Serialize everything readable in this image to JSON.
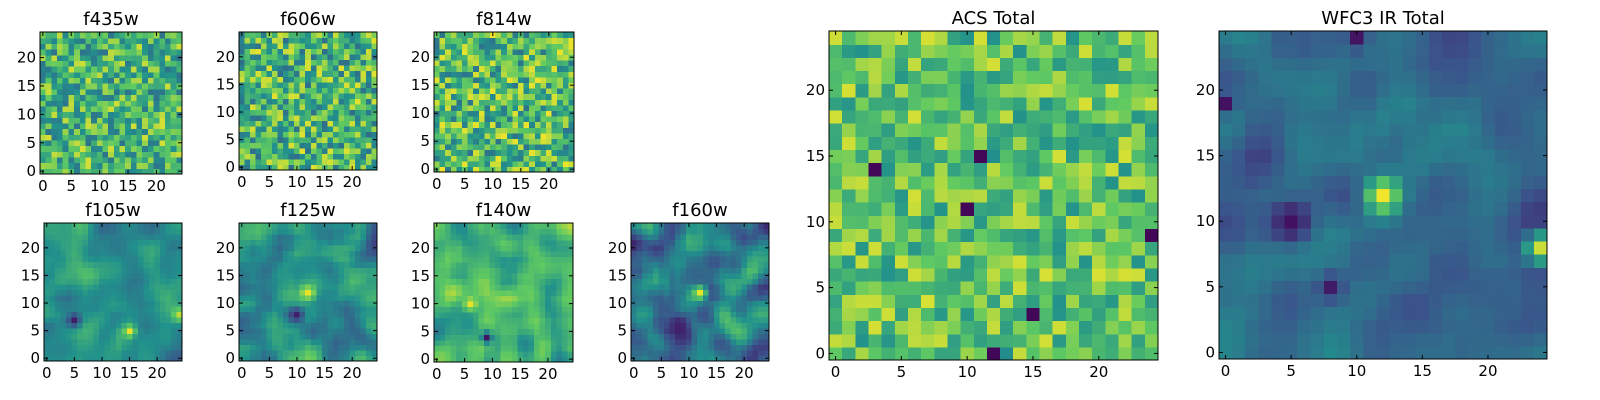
{
  "figure": {
    "title": ""
  },
  "colormap": {
    "name": "viridis",
    "stops": [
      "#440154",
      "#3b528b",
      "#21918c",
      "#5ec962",
      "#fde725"
    ]
  },
  "chart_data": [
    {
      "type": "heatmap",
      "id": "f435w",
      "title": "f435w",
      "grid": [
        25,
        25
      ],
      "xticks": [
        0,
        5,
        10,
        15,
        20
      ],
      "yticks": [
        0,
        5,
        10,
        15,
        20
      ],
      "xlim": [
        0,
        24
      ],
      "ylim": [
        0,
        24
      ],
      "seed": 11,
      "texture": "noise",
      "level": 0.66,
      "contrast": 0.28
    },
    {
      "type": "heatmap",
      "id": "f606w",
      "title": "f606w",
      "grid": [
        25,
        25
      ],
      "xticks": [
        0,
        5,
        10,
        15,
        20
      ],
      "yticks": [
        0,
        5,
        10,
        15,
        20
      ],
      "xlim": [
        0,
        24
      ],
      "ylim": [
        0,
        24
      ],
      "seed": 23,
      "texture": "noise",
      "level": 0.66,
      "contrast": 0.3
    },
    {
      "type": "heatmap",
      "id": "f814w",
      "title": "f814w",
      "grid": [
        25,
        25
      ],
      "xticks": [
        0,
        5,
        10,
        15,
        20
      ],
      "yticks": [
        0,
        5,
        10,
        15,
        20
      ],
      "xlim": [
        0,
        24
      ],
      "ylim": [
        0,
        24
      ],
      "seed": 37,
      "texture": "noise",
      "level": 0.68,
      "contrast": 0.3
    },
    {
      "type": "heatmap",
      "id": "f105w",
      "title": "f105w",
      "grid": [
        25,
        25
      ],
      "xticks": [
        0,
        5,
        10,
        15,
        20
      ],
      "yticks": [
        0,
        5,
        10,
        15,
        20
      ],
      "xlim": [
        0,
        24
      ],
      "ylim": [
        0,
        24
      ],
      "seed": 41,
      "texture": "smooth",
      "level": 0.5,
      "contrast": 0.22,
      "features": [
        {
          "x": 15,
          "y": 5,
          "v": 0.97,
          "r": 0.8
        },
        {
          "x": 24,
          "y": 8,
          "v": 0.9,
          "r": 0.8
        },
        {
          "x": 5,
          "y": 7,
          "v": 0.08,
          "r": 0.9
        }
      ]
    },
    {
      "type": "heatmap",
      "id": "f125w",
      "title": "f125w",
      "grid": [
        25,
        25
      ],
      "xticks": [
        0,
        5,
        10,
        15,
        20
      ],
      "yticks": [
        0,
        5,
        10,
        15,
        20
      ],
      "xlim": [
        0,
        24
      ],
      "ylim": [
        0,
        24
      ],
      "seed": 53,
      "texture": "smooth",
      "level": 0.5,
      "contrast": 0.3,
      "features": [
        {
          "x": 12,
          "y": 12,
          "v": 0.97,
          "r": 0.9
        },
        {
          "x": 10,
          "y": 8,
          "v": 0.1,
          "r": 0.9
        }
      ]
    },
    {
      "type": "heatmap",
      "id": "f140w",
      "title": "f140w",
      "grid": [
        25,
        25
      ],
      "xticks": [
        0,
        5,
        10,
        15,
        20
      ],
      "yticks": [
        0,
        5,
        10,
        15,
        20
      ],
      "xlim": [
        0,
        24
      ],
      "ylim": [
        0,
        24
      ],
      "seed": 67,
      "texture": "smooth",
      "level": 0.64,
      "contrast": 0.26,
      "features": [
        {
          "x": 6,
          "y": 10,
          "v": 0.97,
          "r": 0.9
        },
        {
          "x": 9,
          "y": 4,
          "v": 0.06,
          "r": 0.7
        }
      ]
    },
    {
      "type": "heatmap",
      "id": "f160w",
      "title": "f160w",
      "grid": [
        25,
        25
      ],
      "xticks": [
        0,
        5,
        10,
        15,
        20
      ],
      "yticks": [
        0,
        5,
        10,
        15,
        20
      ],
      "xlim": [
        0,
        24
      ],
      "ylim": [
        0,
        24
      ],
      "seed": 79,
      "texture": "smooth",
      "level": 0.4,
      "contrast": 0.3,
      "features": [
        {
          "x": 12,
          "y": 12,
          "v": 0.97,
          "r": 0.9
        },
        {
          "x": 8,
          "y": 6,
          "v": 0.1,
          "r": 0.9
        }
      ]
    },
    {
      "type": "heatmap",
      "id": "acs-total",
      "title": "ACS Total",
      "grid": [
        25,
        25
      ],
      "xticks": [
        0,
        5,
        10,
        15,
        20
      ],
      "yticks": [
        0,
        5,
        10,
        15,
        20
      ],
      "xlim": [
        0,
        24
      ],
      "ylim": [
        0,
        24
      ],
      "seed": 97,
      "texture": "noise",
      "level": 0.72,
      "contrast": 0.22,
      "features": [
        {
          "x": 3,
          "y": 14,
          "v": 0.02,
          "r": 0.4
        },
        {
          "x": 11,
          "y": 15,
          "v": 0.02,
          "r": 0.4
        },
        {
          "x": 10,
          "y": 11,
          "v": 0.02,
          "r": 0.4
        },
        {
          "x": 15,
          "y": 3,
          "v": 0.02,
          "r": 0.4
        },
        {
          "x": 12,
          "y": 0,
          "v": 0.02,
          "r": 0.4
        },
        {
          "x": 24,
          "y": 9,
          "v": 0.02,
          "r": 0.4
        }
      ]
    },
    {
      "type": "heatmap",
      "id": "wfc3-ir-total",
      "title": "WFC3 IR Total",
      "grid": [
        25,
        25
      ],
      "xticks": [
        0,
        5,
        10,
        15,
        20
      ],
      "yticks": [
        0,
        5,
        10,
        15,
        20
      ],
      "xlim": [
        0,
        24
      ],
      "ylim": [
        0,
        24
      ],
      "seed": 113,
      "texture": "smooth",
      "level": 0.35,
      "contrast": 0.18,
      "features": [
        {
          "x": 12,
          "y": 12,
          "v": 0.98,
          "r": 1.0
        },
        {
          "x": 24,
          "y": 8,
          "v": 0.92,
          "r": 0.8
        },
        {
          "x": 5,
          "y": 10,
          "v": 0.05,
          "r": 1.2
        },
        {
          "x": 8,
          "y": 5,
          "v": 0.08,
          "r": 0.7
        },
        {
          "x": 10,
          "y": 24,
          "v": 0.06,
          "r": 0.6
        },
        {
          "x": 0,
          "y": 19,
          "v": 0.05,
          "r": 0.5
        }
      ]
    }
  ]
}
